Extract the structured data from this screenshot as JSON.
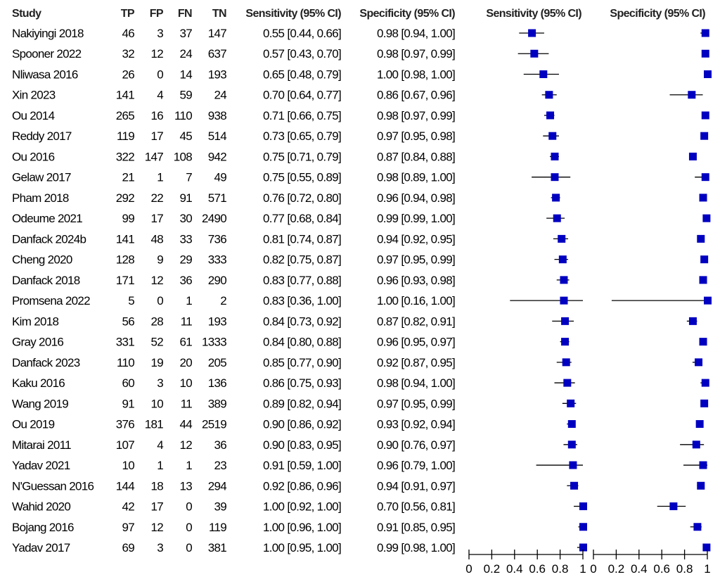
{
  "chart_data": {
    "type": "forest",
    "columns": [
      "Study",
      "TP",
      "FP",
      "FN",
      "TN",
      "Sensitivity (95% CI)",
      "Specificity (95% CI)"
    ],
    "plot_titles": [
      "Sensitivity (95% CI)",
      "Specificity (95% CI)"
    ],
    "xlim": [
      0,
      1
    ],
    "xticks": [
      "0",
      "0.2",
      "0.4",
      "0.6",
      "0.8",
      "1"
    ],
    "marker_color": "#0000c0",
    "studies": [
      {
        "study": "Nakiyingi 2018",
        "tp": "46",
        "fp": "3",
        "fn": "37",
        "tn": "147",
        "sens": 0.55,
        "sens_lo": 0.44,
        "sens_hi": 0.66,
        "sens_text": "0.55 [0.44, 0.66]",
        "spec": 0.98,
        "spec_lo": 0.94,
        "spec_hi": 1.0,
        "spec_text": "0.98 [0.94, 1.00]"
      },
      {
        "study": "Spooner 2022",
        "tp": "32",
        "fp": "12",
        "fn": "24",
        "tn": "637",
        "sens": 0.57,
        "sens_lo": 0.43,
        "sens_hi": 0.7,
        "sens_text": "0.57 [0.43, 0.70]",
        "spec": 0.98,
        "spec_lo": 0.97,
        "spec_hi": 0.99,
        "spec_text": "0.98 [0.97, 0.99]"
      },
      {
        "study": "Nliwasa 2016",
        "tp": "26",
        "fp": "0",
        "fn": "14",
        "tn": "193",
        "sens": 0.65,
        "sens_lo": 0.48,
        "sens_hi": 0.79,
        "sens_text": "0.65 [0.48, 0.79]",
        "spec": 1.0,
        "spec_lo": 0.98,
        "spec_hi": 1.0,
        "spec_text": "1.00 [0.98, 1.00]"
      },
      {
        "study": "Xin 2023",
        "tp": "141",
        "fp": "4",
        "fn": "59",
        "tn": "24",
        "sens": 0.7,
        "sens_lo": 0.64,
        "sens_hi": 0.77,
        "sens_text": "0.70 [0.64, 0.77]",
        "spec": 0.86,
        "spec_lo": 0.67,
        "spec_hi": 0.96,
        "spec_text": "0.86 [0.67, 0.96]"
      },
      {
        "study": "Ou 2014",
        "tp": "265",
        "fp": "16",
        "fn": "110",
        "tn": "938",
        "sens": 0.71,
        "sens_lo": 0.66,
        "sens_hi": 0.75,
        "sens_text": "0.71 [0.66, 0.75]",
        "spec": 0.98,
        "spec_lo": 0.97,
        "spec_hi": 0.99,
        "spec_text": "0.98 [0.97, 0.99]"
      },
      {
        "study": "Reddy 2017",
        "tp": "119",
        "fp": "17",
        "fn": "45",
        "tn": "514",
        "sens": 0.73,
        "sens_lo": 0.65,
        "sens_hi": 0.79,
        "sens_text": "0.73 [0.65, 0.79]",
        "spec": 0.97,
        "spec_lo": 0.95,
        "spec_hi": 0.98,
        "spec_text": "0.97 [0.95, 0.98]"
      },
      {
        "study": "Ou 2016",
        "tp": "322",
        "fp": "147",
        "fn": "108",
        "tn": "942",
        "sens": 0.75,
        "sens_lo": 0.71,
        "sens_hi": 0.79,
        "sens_text": "0.75 [0.71, 0.79]",
        "spec": 0.87,
        "spec_lo": 0.84,
        "spec_hi": 0.88,
        "spec_text": "0.87 [0.84, 0.88]"
      },
      {
        "study": "Gelaw 2017",
        "tp": "21",
        "fp": "1",
        "fn": "7",
        "tn": "49",
        "sens": 0.75,
        "sens_lo": 0.55,
        "sens_hi": 0.89,
        "sens_text": "0.75 [0.55, 0.89]",
        "spec": 0.98,
        "spec_lo": 0.89,
        "spec_hi": 1.0,
        "spec_text": "0.98 [0.89, 1.00]"
      },
      {
        "study": "Pham 2018",
        "tp": "292",
        "fp": "22",
        "fn": "91",
        "tn": "571",
        "sens": 0.76,
        "sens_lo": 0.72,
        "sens_hi": 0.8,
        "sens_text": "0.76 [0.72, 0.80]",
        "spec": 0.96,
        "spec_lo": 0.94,
        "spec_hi": 0.98,
        "spec_text": "0.96 [0.94, 0.98]"
      },
      {
        "study": "Odeume 2021",
        "tp": "99",
        "fp": "17",
        "fn": "30",
        "tn": "2490",
        "sens": 0.77,
        "sens_lo": 0.68,
        "sens_hi": 0.84,
        "sens_text": "0.77 [0.68, 0.84]",
        "spec": 0.99,
        "spec_lo": 0.99,
        "spec_hi": 1.0,
        "spec_text": "0.99 [0.99, 1.00]"
      },
      {
        "study": "Danfack 2024b",
        "tp": "141",
        "fp": "48",
        "fn": "33",
        "tn": "736",
        "sens": 0.81,
        "sens_lo": 0.74,
        "sens_hi": 0.87,
        "sens_text": "0.81 [0.74, 0.87]",
        "spec": 0.94,
        "spec_lo": 0.92,
        "spec_hi": 0.95,
        "spec_text": "0.94 [0.92, 0.95]"
      },
      {
        "study": "Cheng 2020",
        "tp": "128",
        "fp": "9",
        "fn": "29",
        "tn": "333",
        "sens": 0.82,
        "sens_lo": 0.75,
        "sens_hi": 0.87,
        "sens_text": "0.82 [0.75, 0.87]",
        "spec": 0.97,
        "spec_lo": 0.95,
        "spec_hi": 0.99,
        "spec_text": "0.97 [0.95, 0.99]"
      },
      {
        "study": "Danfack 2018",
        "tp": "171",
        "fp": "12",
        "fn": "36",
        "tn": "290",
        "sens": 0.83,
        "sens_lo": 0.77,
        "sens_hi": 0.88,
        "sens_text": "0.83 [0.77, 0.88]",
        "spec": 0.96,
        "spec_lo": 0.93,
        "spec_hi": 0.98,
        "spec_text": "0.96 [0.93, 0.98]"
      },
      {
        "study": "Promsena 2022",
        "tp": "5",
        "fp": "0",
        "fn": "1",
        "tn": "2",
        "sens": 0.83,
        "sens_lo": 0.36,
        "sens_hi": 1.0,
        "sens_text": "0.83 [0.36, 1.00]",
        "spec": 1.0,
        "spec_lo": 0.16,
        "spec_hi": 1.0,
        "spec_text": "1.00 [0.16, 1.00]"
      },
      {
        "study": "Kim 2018",
        "tp": "56",
        "fp": "28",
        "fn": "11",
        "tn": "193",
        "sens": 0.84,
        "sens_lo": 0.73,
        "sens_hi": 0.92,
        "sens_text": "0.84 [0.73, 0.92]",
        "spec": 0.87,
        "spec_lo": 0.82,
        "spec_hi": 0.91,
        "spec_text": "0.87 [0.82, 0.91]"
      },
      {
        "study": "Gray 2016",
        "tp": "331",
        "fp": "52",
        "fn": "61",
        "tn": "1333",
        "sens": 0.84,
        "sens_lo": 0.8,
        "sens_hi": 0.88,
        "sens_text": "0.84 [0.80, 0.88]",
        "spec": 0.96,
        "spec_lo": 0.95,
        "spec_hi": 0.97,
        "spec_text": "0.96 [0.95, 0.97]"
      },
      {
        "study": "Danfack 2023",
        "tp": "110",
        "fp": "19",
        "fn": "20",
        "tn": "205",
        "sens": 0.85,
        "sens_lo": 0.77,
        "sens_hi": 0.9,
        "sens_text": "0.85 [0.77, 0.90]",
        "spec": 0.92,
        "spec_lo": 0.87,
        "spec_hi": 0.95,
        "spec_text": "0.92 [0.87, 0.95]"
      },
      {
        "study": "Kaku 2016",
        "tp": "60",
        "fp": "3",
        "fn": "10",
        "tn": "136",
        "sens": 0.86,
        "sens_lo": 0.75,
        "sens_hi": 0.93,
        "sens_text": "0.86 [0.75, 0.93]",
        "spec": 0.98,
        "spec_lo": 0.94,
        "spec_hi": 1.0,
        "spec_text": "0.98 [0.94, 1.00]"
      },
      {
        "study": "Wang 2019",
        "tp": "91",
        "fp": "10",
        "fn": "11",
        "tn": "389",
        "sens": 0.89,
        "sens_lo": 0.82,
        "sens_hi": 0.94,
        "sens_text": "0.89 [0.82, 0.94]",
        "spec": 0.97,
        "spec_lo": 0.95,
        "spec_hi": 0.99,
        "spec_text": "0.97 [0.95, 0.99]"
      },
      {
        "study": "Ou 2019",
        "tp": "376",
        "fp": "181",
        "fn": "44",
        "tn": "2519",
        "sens": 0.9,
        "sens_lo": 0.86,
        "sens_hi": 0.92,
        "sens_text": "0.90 [0.86, 0.92]",
        "spec": 0.93,
        "spec_lo": 0.92,
        "spec_hi": 0.94,
        "spec_text": "0.93 [0.92, 0.94]"
      },
      {
        "study": "Mitarai 2011",
        "tp": "107",
        "fp": "4",
        "fn": "12",
        "tn": "36",
        "sens": 0.9,
        "sens_lo": 0.83,
        "sens_hi": 0.95,
        "sens_text": "0.90 [0.83, 0.95]",
        "spec": 0.9,
        "spec_lo": 0.76,
        "spec_hi": 0.97,
        "spec_text": "0.90 [0.76, 0.97]"
      },
      {
        "study": "Yadav 2021",
        "tp": "10",
        "fp": "1",
        "fn": "1",
        "tn": "23",
        "sens": 0.91,
        "sens_lo": 0.59,
        "sens_hi": 1.0,
        "sens_text": "0.91 [0.59, 1.00]",
        "spec": 0.96,
        "spec_lo": 0.79,
        "spec_hi": 1.0,
        "spec_text": "0.96 [0.79, 1.00]"
      },
      {
        "study": "N'Guessan 2016",
        "tp": "144",
        "fp": "18",
        "fn": "13",
        "tn": "294",
        "sens": 0.92,
        "sens_lo": 0.86,
        "sens_hi": 0.96,
        "sens_text": "0.92 [0.86, 0.96]",
        "spec": 0.94,
        "spec_lo": 0.91,
        "spec_hi": 0.97,
        "spec_text": "0.94 [0.91, 0.97]"
      },
      {
        "study": "Wahid 2020",
        "tp": "42",
        "fp": "17",
        "fn": "0",
        "tn": "39",
        "sens": 1.0,
        "sens_lo": 0.92,
        "sens_hi": 1.0,
        "sens_text": "1.00 [0.92, 1.00]",
        "spec": 0.7,
        "spec_lo": 0.56,
        "spec_hi": 0.81,
        "spec_text": "0.70 [0.56, 0.81]"
      },
      {
        "study": "Bojang 2016",
        "tp": "97",
        "fp": "12",
        "fn": "0",
        "tn": "119",
        "sens": 1.0,
        "sens_lo": 0.96,
        "sens_hi": 1.0,
        "sens_text": "1.00 [0.96, 1.00]",
        "spec": 0.91,
        "spec_lo": 0.85,
        "spec_hi": 0.95,
        "spec_text": "0.91 [0.85, 0.95]"
      },
      {
        "study": "Yadav 2017",
        "tp": "69",
        "fp": "3",
        "fn": "0",
        "tn": "381",
        "sens": 1.0,
        "sens_lo": 0.95,
        "sens_hi": 1.0,
        "sens_text": "1.00 [0.95, 1.00]",
        "spec": 0.99,
        "spec_lo": 0.98,
        "spec_hi": 1.0,
        "spec_text": "0.99 [0.98, 1.00]"
      }
    ]
  }
}
